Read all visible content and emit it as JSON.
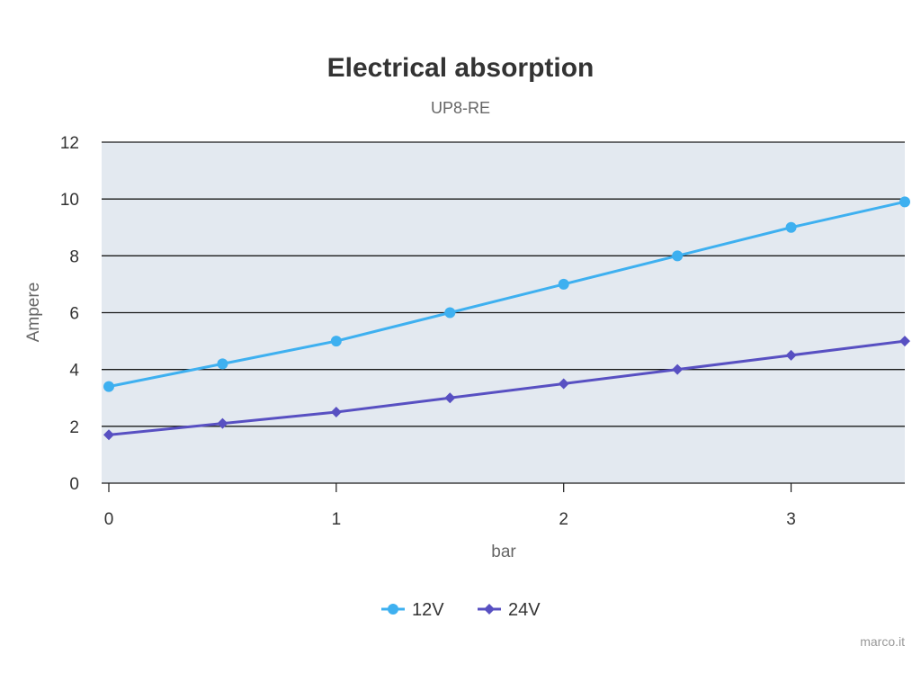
{
  "chart_data": {
    "type": "line",
    "title": "Electrical absorption",
    "subtitle": "UP8-RE",
    "xlabel": "bar",
    "ylabel": "Ampere",
    "xlim": [
      0,
      3.5
    ],
    "ylim": [
      0,
      12
    ],
    "x_ticks": [
      "0",
      "1",
      "2",
      "3"
    ],
    "y_ticks": [
      "0",
      "2",
      "4",
      "6",
      "8",
      "10",
      "12"
    ],
    "grid": true,
    "legend_position": "bottom-center",
    "x": [
      0,
      0.5,
      1,
      1.5,
      2,
      2.5,
      3,
      3.5
    ],
    "series": [
      {
        "name": "12V",
        "color": "#3eb0f0",
        "marker": "circle",
        "values": [
          3.4,
          4.2,
          5.0,
          6.0,
          7.0,
          8.0,
          9.0,
          9.9
        ]
      },
      {
        "name": "24V",
        "color": "#5850c2",
        "marker": "diamond",
        "values": [
          1.7,
          2.1,
          2.5,
          3.0,
          3.5,
          4.0,
          4.5,
          5.0
        ]
      }
    ],
    "plot_background": "#e3e9f0",
    "credit": "marco.it"
  }
}
